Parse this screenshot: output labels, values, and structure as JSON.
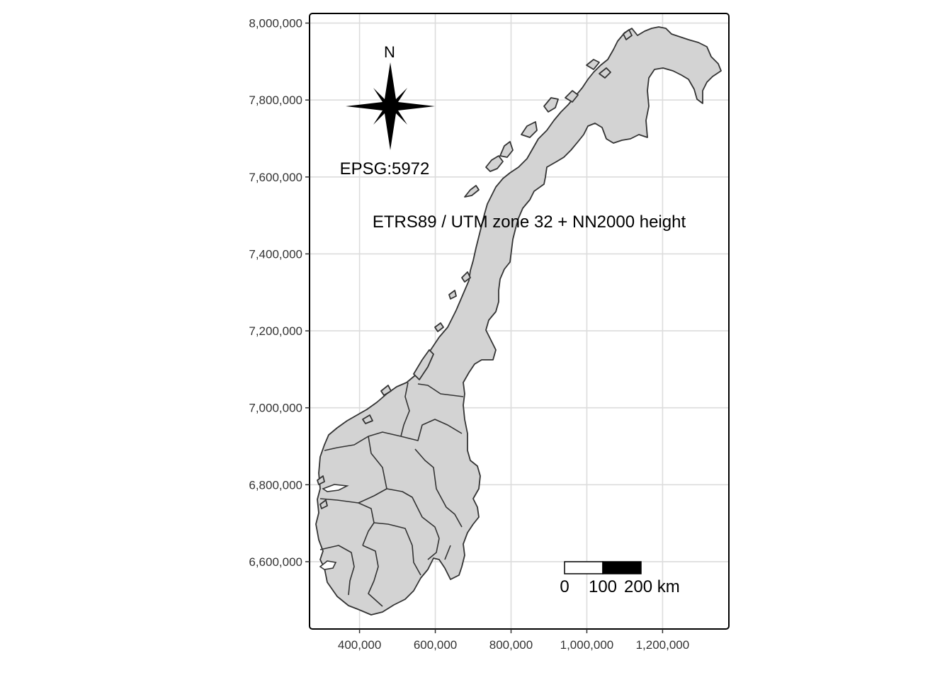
{
  "map": {
    "x_ticks": [
      {
        "value": 400000,
        "label": "400,000"
      },
      {
        "value": 600000,
        "label": "600,000"
      },
      {
        "value": 800000,
        "label": "800,000"
      },
      {
        "value": 1000000,
        "label": "1,000,000"
      },
      {
        "value": 1200000,
        "label": "1,200,000"
      }
    ],
    "y_ticks": [
      {
        "value": 6600000,
        "label": "6,600,000"
      },
      {
        "value": 6800000,
        "label": "6,800,000"
      },
      {
        "value": 7000000,
        "label": "7,000,000"
      },
      {
        "value": 7200000,
        "label": "7,200,000"
      },
      {
        "value": 7400000,
        "label": "7,400,000"
      },
      {
        "value": 7600000,
        "label": "7,600,000"
      },
      {
        "value": 7800000,
        "label": "7,800,000"
      },
      {
        "value": 8000000,
        "label": "8,000,000"
      }
    ],
    "x_range": [
      268000,
      1375000
    ],
    "y_range": [
      6425000,
      8025000
    ],
    "grid": true,
    "colors": {
      "land": "#d3d3d3",
      "border": "#333333",
      "grid": "#dcdcdc",
      "frame": "#000000"
    },
    "north_arrow": {
      "label": "N",
      "icon": "compass-star-icon"
    },
    "crs_code": "EPSG:5972",
    "crs_name": "ETRS89 / UTM zone 32 + NN2000 height",
    "scale_bar": {
      "labels": [
        "0",
        "100",
        "200 km"
      ],
      "unit": "km"
    }
  }
}
